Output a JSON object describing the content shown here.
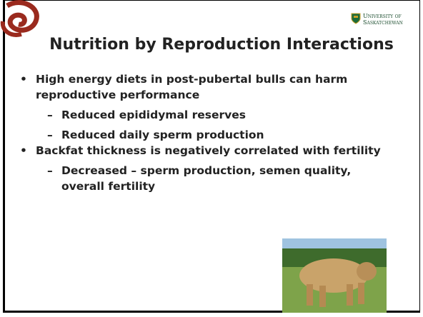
{
  "header": {
    "title": "Nutrition by Reproduction Interactions",
    "logo_line1": "University of",
    "logo_line2": "Saskatchewan"
  },
  "bullets": [
    {
      "text": "High energy diets in post-pubertal bulls can harm reproductive performance",
      "subs": [
        "Reduced epididymal reserves",
        "Reduced daily sperm production"
      ]
    },
    {
      "text": "Backfat thickness is negatively correlated with fertility",
      "subs": [
        "Decreased – sperm production, semen quality, overall fertility"
      ]
    }
  ]
}
